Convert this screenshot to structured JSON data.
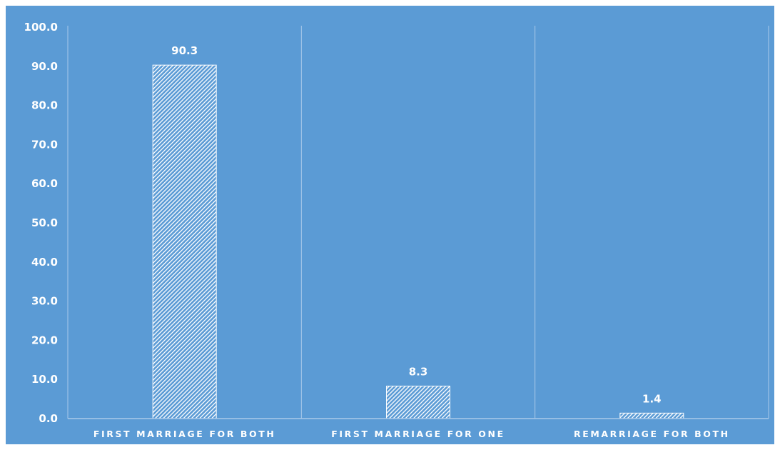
{
  "chart_data": {
    "type": "bar",
    "categories": [
      "FIRST MARRIAGE FOR BOTH",
      "FIRST MARRIAGE FOR ONE",
      "REMARRIAGE FOR BOTH"
    ],
    "values": [
      90.3,
      8.3,
      1.4
    ],
    "data_labels": [
      "90.3",
      "8.3",
      "1.4"
    ],
    "title": "",
    "xlabel": "",
    "ylabel": "",
    "ylim": [
      0,
      100
    ],
    "yticks": [
      "0.0",
      "10.0",
      "20.0",
      "30.0",
      "40.0",
      "50.0",
      "60.0",
      "70.0",
      "80.0",
      "90.0",
      "100.0"
    ],
    "grid": "vertical separators between categories",
    "legend": "none",
    "colors": {
      "background": "#5b9bd5",
      "bar_pattern": "#ffffff",
      "text": "#ffffff",
      "axis": "#a9c9ea"
    }
  }
}
